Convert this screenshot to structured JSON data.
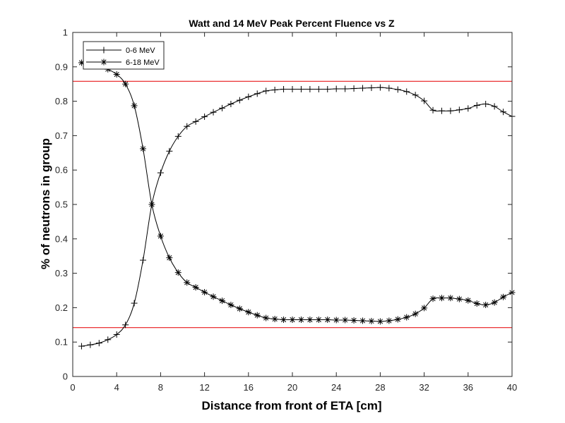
{
  "chart_data": {
    "type": "line",
    "title": "Watt and 14 MeV Peak Percent Fluence vs Z",
    "xlabel": "Distance from front of ETA [cm]",
    "ylabel": "% of neutrons in group",
    "xlim": [
      0,
      40
    ],
    "ylim": [
      0,
      1
    ],
    "xticks": [
      0,
      4,
      8,
      12,
      16,
      20,
      24,
      28,
      32,
      36,
      40
    ],
    "yticks": [
      0,
      0.1,
      0.2,
      0.3,
      0.4,
      0.5,
      0.6,
      0.7,
      0.8,
      0.9,
      1
    ],
    "xtick_labels": [
      "0",
      "4",
      "8",
      "12",
      "16",
      "20",
      "24",
      "28",
      "32",
      "36",
      "40"
    ],
    "ytick_labels": [
      "0",
      "0.1",
      "0.2",
      "0.3",
      "0.4",
      "0.5",
      "0.6",
      "0.7",
      "0.8",
      "0.9",
      "1"
    ],
    "grid": false,
    "legend_position": "top-left",
    "x": [
      0.8,
      1.6,
      2.4,
      3.2,
      4.0,
      4.8,
      5.6,
      6.4,
      7.2,
      8.0,
      8.8,
      9.6,
      10.4,
      11.2,
      12.0,
      12.8,
      13.6,
      14.4,
      15.2,
      16.0,
      16.8,
      17.6,
      18.4,
      19.2,
      20.0,
      20.8,
      21.6,
      22.4,
      23.2,
      24.0,
      24.8,
      25.6,
      26.4,
      27.2,
      28.0,
      28.8,
      29.6,
      30.4,
      31.2,
      32.0,
      32.8,
      33.6,
      34.4,
      35.2,
      36.0,
      36.8,
      37.6,
      38.4,
      39.2,
      40.0
    ],
    "series": [
      {
        "name": "0-6 MeV",
        "marker": "plus",
        "color": "#000000",
        "values": [
          0.088,
          0.092,
          0.097,
          0.107,
          0.122,
          0.15,
          0.213,
          0.338,
          0.5,
          0.592,
          0.655,
          0.698,
          0.727,
          0.741,
          0.755,
          0.768,
          0.78,
          0.792,
          0.803,
          0.813,
          0.822,
          0.83,
          0.833,
          0.835,
          0.835,
          0.835,
          0.835,
          0.835,
          0.835,
          0.836,
          0.836,
          0.837,
          0.838,
          0.839,
          0.84,
          0.838,
          0.834,
          0.828,
          0.818,
          0.801,
          0.774,
          0.772,
          0.772,
          0.775,
          0.779,
          0.788,
          0.792,
          0.785,
          0.769,
          0.756
        ]
      },
      {
        "name": "6-18 MeV",
        "marker": "asterisk",
        "color": "#000000",
        "values": [
          0.912,
          0.908,
          0.903,
          0.893,
          0.878,
          0.85,
          0.787,
          0.662,
          0.5,
          0.408,
          0.345,
          0.302,
          0.273,
          0.259,
          0.245,
          0.232,
          0.22,
          0.208,
          0.197,
          0.187,
          0.178,
          0.17,
          0.167,
          0.165,
          0.165,
          0.165,
          0.165,
          0.165,
          0.165,
          0.164,
          0.164,
          0.163,
          0.162,
          0.161,
          0.16,
          0.162,
          0.166,
          0.172,
          0.182,
          0.199,
          0.226,
          0.228,
          0.228,
          0.225,
          0.221,
          0.212,
          0.208,
          0.215,
          0.231,
          0.244
        ]
      }
    ],
    "reference_lines": [
      {
        "y": 0.858,
        "color": "#e8191c"
      },
      {
        "y": 0.142,
        "color": "#e8191c"
      }
    ]
  }
}
